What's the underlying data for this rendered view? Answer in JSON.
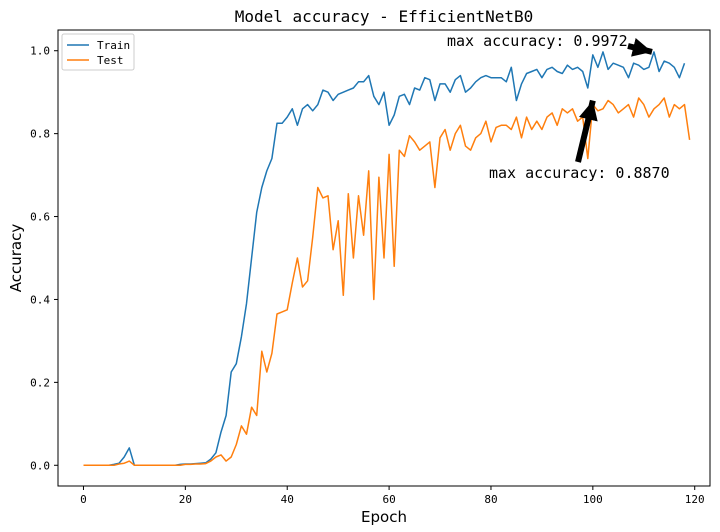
{
  "chart_data": {
    "type": "line",
    "title": "Model accuracy - EfficientNetB0",
    "xlabel": "Epoch",
    "ylabel": "Accuracy",
    "xlim": [
      -5,
      123
    ],
    "ylim": [
      -0.05,
      1.05
    ],
    "xticks": [
      0,
      20,
      40,
      60,
      80,
      100,
      120
    ],
    "yticks": [
      0.0,
      0.2,
      0.4,
      0.6,
      0.8,
      1.0
    ],
    "xtick_labels": [
      "0",
      "20",
      "40",
      "60",
      "80",
      "100",
      "120"
    ],
    "ytick_labels": [
      "0.0",
      "0.2",
      "0.4",
      "0.6",
      "0.8",
      "1.0"
    ],
    "legend_position": "top-left",
    "grid": false,
    "series": [
      {
        "name": "Train",
        "color": "#1f77b4",
        "values": [
          0.0,
          0.0,
          0.0,
          0.0,
          0.0,
          0.0,
          0.002,
          0.005,
          0.02,
          0.042,
          0.0,
          0.0,
          0.0,
          0.0,
          0.0,
          0.0,
          0.0,
          0.0,
          0.0,
          0.002,
          0.003,
          0.003,
          0.004,
          0.005,
          0.006,
          0.015,
          0.03,
          0.08,
          0.12,
          0.225,
          0.245,
          0.31,
          0.39,
          0.5,
          0.61,
          0.67,
          0.71,
          0.74,
          0.825,
          0.825,
          0.84,
          0.86,
          0.82,
          0.86,
          0.87,
          0.855,
          0.87,
          0.905,
          0.9,
          0.88,
          0.895,
          0.9,
          0.905,
          0.91,
          0.925,
          0.925,
          0.94,
          0.89,
          0.87,
          0.9,
          0.82,
          0.845,
          0.89,
          0.895,
          0.87,
          0.91,
          0.905,
          0.935,
          0.93,
          0.88,
          0.92,
          0.92,
          0.9,
          0.93,
          0.94,
          0.9,
          0.91,
          0.925,
          0.935,
          0.94,
          0.935,
          0.935,
          0.935,
          0.925,
          0.96,
          0.88,
          0.92,
          0.945,
          0.95,
          0.955,
          0.935,
          0.955,
          0.96,
          0.95,
          0.945,
          0.965,
          0.955,
          0.96,
          0.95,
          0.91,
          0.99,
          0.96,
          0.9972,
          0.955,
          0.97,
          0.965,
          0.96,
          0.935,
          0.97,
          0.965,
          0.955,
          0.96,
          0.9972,
          0.95,
          0.975,
          0.97,
          0.96,
          0.935,
          0.97
        ]
      },
      {
        "name": "Test",
        "color": "#ff7f0e",
        "values": [
          0.0,
          0.0,
          0.0,
          0.0,
          0.0,
          0.0,
          0.0,
          0.003,
          0.005,
          0.01,
          0.0,
          0.0,
          0.0,
          0.0,
          0.0,
          0.0,
          0.0,
          0.0,
          0.0,
          0.0,
          0.002,
          0.002,
          0.003,
          0.003,
          0.004,
          0.01,
          0.02,
          0.025,
          0.01,
          0.02,
          0.05,
          0.095,
          0.075,
          0.14,
          0.12,
          0.275,
          0.225,
          0.27,
          0.365,
          0.37,
          0.375,
          0.44,
          0.5,
          0.43,
          0.445,
          0.55,
          0.67,
          0.645,
          0.65,
          0.52,
          0.59,
          0.41,
          0.655,
          0.5,
          0.65,
          0.555,
          0.71,
          0.4,
          0.695,
          0.5,
          0.75,
          0.48,
          0.76,
          0.745,
          0.795,
          0.78,
          0.76,
          0.77,
          0.78,
          0.67,
          0.79,
          0.81,
          0.76,
          0.8,
          0.82,
          0.77,
          0.76,
          0.79,
          0.8,
          0.83,
          0.78,
          0.815,
          0.82,
          0.82,
          0.81,
          0.84,
          0.79,
          0.84,
          0.81,
          0.83,
          0.81,
          0.84,
          0.85,
          0.82,
          0.86,
          0.85,
          0.86,
          0.83,
          0.84,
          0.74,
          0.87,
          0.855,
          0.86,
          0.88,
          0.87,
          0.85,
          0.86,
          0.87,
          0.84,
          0.886,
          0.87,
          0.84,
          0.86,
          0.87,
          0.886,
          0.84,
          0.87,
          0.86,
          0.87,
          0.785
        ]
      }
    ],
    "annotations": [
      {
        "text": "max accuracy: 0.9972",
        "x": 112,
        "y": 0.9972
      },
      {
        "text": "max accuracy: 0.8870",
        "x": 100,
        "y": 0.887
      }
    ]
  }
}
